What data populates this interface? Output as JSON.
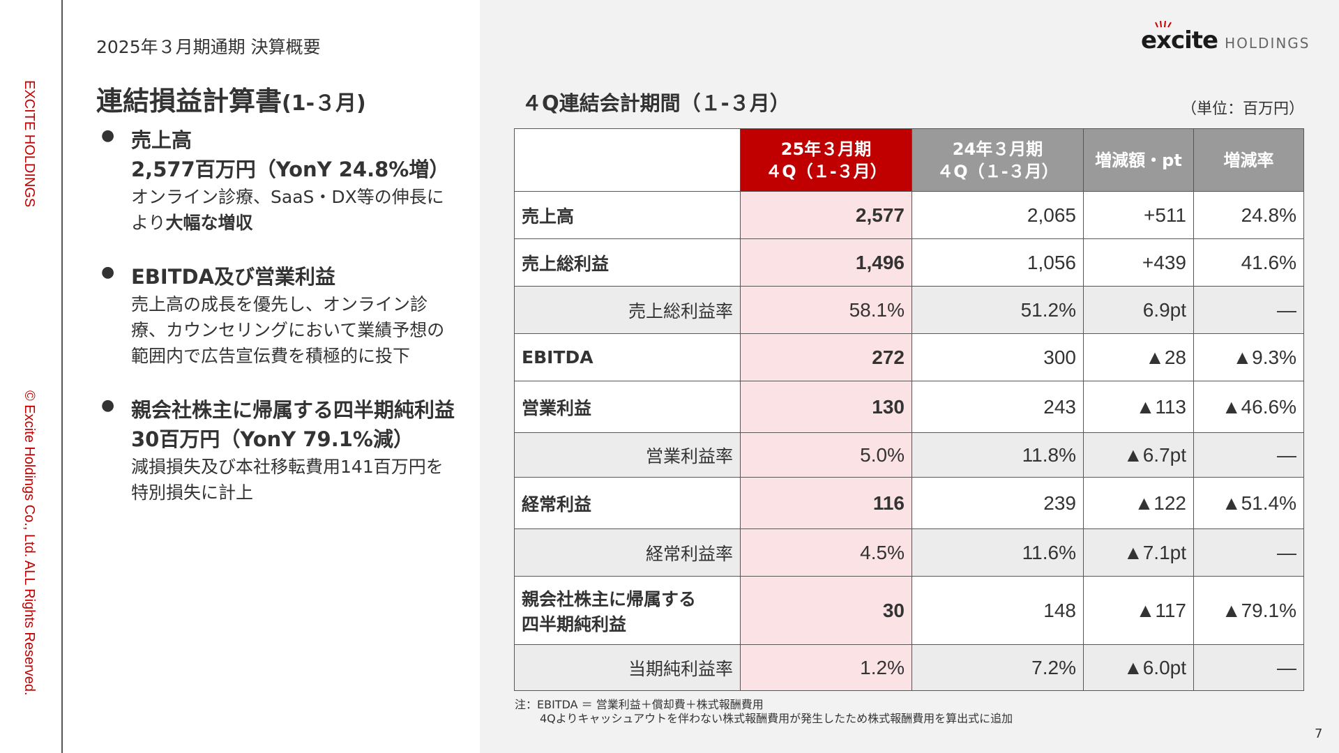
{
  "side": {
    "company": "EXCITE HOLDINGS",
    "copyright": "© Excite Holdings Co., Ltd. ALL Rights Reserved."
  },
  "header": {
    "subtitle": "2025年３月期通期 決算概要",
    "title": "連結損益計算書",
    "title_suffix": "(1-３月)"
  },
  "logo": {
    "brand": "excite",
    "suffix": "HOLDINGS",
    "accent": "#c00000"
  },
  "bullets": [
    {
      "head": "売上高",
      "head2": "2,577百万円（YonY 24.8%増）",
      "body1": "オンライン診療、SaaS・DX等の伸長に",
      "body2_pre": "より",
      "body2_bold": "大幅な増収",
      "body3": ""
    },
    {
      "head": "EBITDA及び営業利益",
      "head2": "",
      "body1": "売上高の成長を優先し、オンライン診",
      "body2_pre": "療、カウンセリングにおいて業績予想の",
      "body2_bold": "",
      "body3": "範囲内で広告宣伝費を積極的に投下"
    },
    {
      "head": "親会社株主に帰属する四半期純利益",
      "head2": "30百万円（YonY 79.1%減）",
      "body1": "減損損失及び本社移転費用141百万円を",
      "body2_pre": "特別損失に計上",
      "body2_bold": "",
      "body3": ""
    }
  ],
  "table": {
    "title": "４Q連結会計期間（１-３月）",
    "unit": "（単位：百万円）",
    "headers": {
      "current_l1": "25年３月期",
      "current_l2": "４Q（１-３月）",
      "prior_l1": "24年３月期",
      "prior_l2": "４Q（１-３月）",
      "diff": "増減額・pt",
      "rate": "増減率"
    },
    "rows": [
      {
        "label": "売上高",
        "current": "2,577",
        "prior": "2,065",
        "diff": "+511",
        "rate": "24.8%"
      },
      {
        "label": "売上総利益",
        "current": "1,496",
        "prior": "1,056",
        "diff": "+439",
        "rate": "41.6%"
      },
      {
        "label": "売上総利益率",
        "current": "58.1%",
        "prior": "51.2%",
        "diff": "6.9pt",
        "rate": "—"
      },
      {
        "label": "EBITDA",
        "current": "272",
        "prior": "300",
        "diff": "▲28",
        "rate": "▲9.3%"
      },
      {
        "label": "営業利益",
        "current": "130",
        "prior": "243",
        "diff": "▲113",
        "rate": "▲46.6%"
      },
      {
        "label": "営業利益率",
        "current": "5.0%",
        "prior": "11.8%",
        "diff": "▲6.7pt",
        "rate": "—"
      },
      {
        "label": "経常利益",
        "current": "116",
        "prior": "239",
        "diff": "▲122",
        "rate": "▲51.4%"
      },
      {
        "label": "経常利益率",
        "current": "4.5%",
        "prior": "11.6%",
        "diff": "▲7.1pt",
        "rate": "—"
      },
      {
        "label": "親会社株主に帰属する",
        "label2": "四半期純利益",
        "current": "30",
        "prior": "148",
        "diff": "▲117",
        "rate": "▲79.1%"
      },
      {
        "label": "当期純利益率",
        "current": "1.2%",
        "prior": "7.2%",
        "diff": "▲6.0pt",
        "rate": "—"
      }
    ]
  },
  "note": {
    "line1": "注：EBITDA ＝ 営業利益＋償却費＋株式報酬費用",
    "line2": "4Qよりキャッシュアウトを伴わない株式報酬費用が発生したため株式報酬費用を算出式に追加"
  },
  "page_number": "7"
}
